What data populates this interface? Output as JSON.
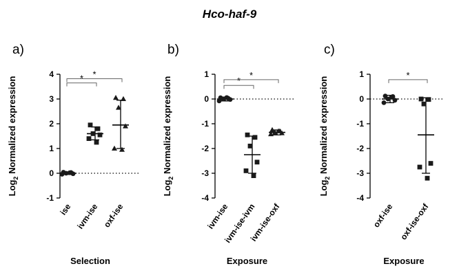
{
  "title": "Hco-haf-9",
  "chart_data": [
    {
      "panel": "a)",
      "type": "scatter",
      "ylabel": "Log2 Normalized expression",
      "ylabel_main": "Log",
      "ylabel_sub": "2",
      "ylabel_rest": " Normalized expression",
      "xlabel": "Selection",
      "ylim": [
        -1,
        4
      ],
      "yticks": [
        -1,
        0,
        1,
        2,
        3,
        4
      ],
      "zero_line": "dotted",
      "categories": [
        "ise",
        "ivm-ise",
        "oxf-ise"
      ],
      "series": [
        {
          "category": "ise",
          "marker": "circle",
          "mean": 0.0,
          "sd_low": -0.05,
          "sd_high": 0.05,
          "points": [
            0.04,
            0.03,
            0.0,
            -0.02,
            -0.04,
            0.02
          ]
        },
        {
          "category": "ivm-ise",
          "marker": "square",
          "mean": 1.6,
          "sd_low": 1.35,
          "sd_high": 1.87,
          "points": [
            1.95,
            1.8,
            1.6,
            1.55,
            1.4,
            1.25
          ]
        },
        {
          "category": "oxf-ise",
          "marker": "triangle",
          "mean": 1.95,
          "sd_low": 1.0,
          "sd_high": 2.95,
          "points": [
            3.05,
            3.0,
            2.65,
            1.9,
            1.0,
            0.95
          ]
        }
      ],
      "significance": [
        {
          "from": "ise",
          "to": "ivm-ise",
          "label": "*",
          "y": 3.65
        },
        {
          "from": "ise",
          "to": "oxf-ise",
          "label": "*",
          "y": 3.82
        }
      ]
    },
    {
      "panel": "b)",
      "type": "scatter",
      "ylabel": "Log2 Normalized expression",
      "ylabel_main": "Log",
      "ylabel_sub": "2",
      "ylabel_rest": " Normalized expression",
      "xlabel": "Exposure",
      "ylim": [
        -4,
        1
      ],
      "yticks": [
        -4,
        -3,
        -2,
        -1,
        0,
        1
      ],
      "zero_line": "dotted",
      "categories": [
        "ivm-ise",
        "ivm-ise-ivm",
        "ivm-ise-oxf"
      ],
      "series": [
        {
          "category": "ivm-ise",
          "marker": "circle",
          "mean": 0.0,
          "sd_low": -0.08,
          "sd_high": 0.08,
          "points": [
            0.05,
            0.03,
            0.0,
            -0.02,
            -0.08,
            0.06
          ]
        },
        {
          "category": "ivm-ise-ivm",
          "marker": "square",
          "mean": -2.25,
          "sd_low": -3.0,
          "sd_high": -1.5,
          "points": [
            -1.45,
            -1.55,
            -1.9,
            -2.55,
            -2.9,
            -3.1
          ]
        },
        {
          "category": "ivm-ise-oxf",
          "marker": "triangle",
          "mean": -1.35,
          "sd_low": -1.45,
          "sd_high": -1.25,
          "points": [
            -1.25,
            -1.3,
            -1.35,
            -1.38,
            -1.42,
            -1.3
          ]
        }
      ],
      "significance": [
        {
          "from": "ivm-ise",
          "to": "ivm-ise-ivm",
          "label": "*",
          "y": 0.55
        },
        {
          "from": "ivm-ise",
          "to": "ivm-ise-oxf",
          "label": "*",
          "y": 0.78
        }
      ]
    },
    {
      "panel": "c)",
      "type": "scatter",
      "ylabel": "Log2 Normalized expression",
      "ylabel_main": "Log",
      "ylabel_sub": "2",
      "ylabel_rest": " Normalized expression",
      "xlabel": "Exposure",
      "ylim": [
        -4,
        1
      ],
      "yticks": [
        -4,
        -3,
        -2,
        -1,
        0,
        1
      ],
      "zero_line": "dotted",
      "categories": [
        "oxf-ise",
        "oxf-ise-oxf"
      ],
      "series": [
        {
          "category": "oxf-ise",
          "marker": "circle",
          "mean": 0.0,
          "sd_low": -0.15,
          "sd_high": 0.15,
          "points": [
            0.12,
            0.1,
            0.0,
            -0.05,
            -0.15,
            0.08
          ]
        },
        {
          "category": "oxf-ise-oxf",
          "marker": "square",
          "mean": -1.45,
          "sd_low": -3.0,
          "sd_high": 0.05,
          "points": [
            0.0,
            -0.02,
            -0.2,
            -2.6,
            -2.75,
            -3.2
          ]
        }
      ],
      "significance": [
        {
          "from": "oxf-ise",
          "to": "oxf-ise-oxf",
          "label": "*",
          "y": 0.78
        }
      ]
    }
  ]
}
